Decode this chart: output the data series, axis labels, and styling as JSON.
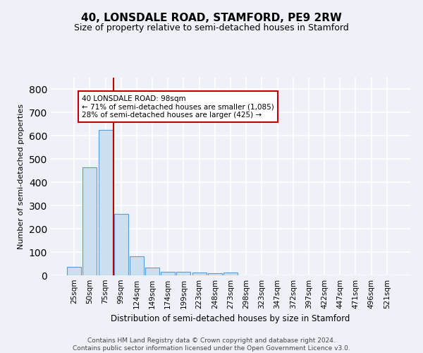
{
  "title": "40, LONSDALE ROAD, STAMFORD, PE9 2RW",
  "subtitle": "Size of property relative to semi-detached houses in Stamford",
  "xlabel": "Distribution of semi-detached houses by size in Stamford",
  "ylabel": "Number of semi-detached properties",
  "bar_labels": [
    "25sqm",
    "50sqm",
    "75sqm",
    "99sqm",
    "124sqm",
    "149sqm",
    "174sqm",
    "199sqm",
    "223sqm",
    "248sqm",
    "273sqm",
    "298sqm",
    "323sqm",
    "347sqm",
    "372sqm",
    "397sqm",
    "422sqm",
    "447sqm",
    "471sqm",
    "496sqm",
    "521sqm"
  ],
  "bar_values": [
    35,
    465,
    625,
    265,
    82,
    33,
    15,
    14,
    11,
    8,
    12,
    0,
    0,
    0,
    0,
    0,
    0,
    0,
    0,
    0,
    0
  ],
  "bar_color": "#ccdff0",
  "bar_edge_color": "#5b9bd5",
  "vline_color": "#c00000",
  "annotation_text": "40 LONSDALE ROAD: 98sqm\n← 71% of semi-detached houses are smaller (1,085)\n28% of semi-detached houses are larger (425) →",
  "annotation_box_edge": "#c00000",
  "footer_line1": "Contains HM Land Registry data © Crown copyright and database right 2024.",
  "footer_line2": "Contains public sector information licensed under the Open Government Licence v3.0.",
  "ylim": [
    0,
    850
  ],
  "background_color": "#eef2f8",
  "plot_background": "#eef2f8",
  "grid_color": "#ffffff",
  "vline_x_bar_index": 2.5
}
